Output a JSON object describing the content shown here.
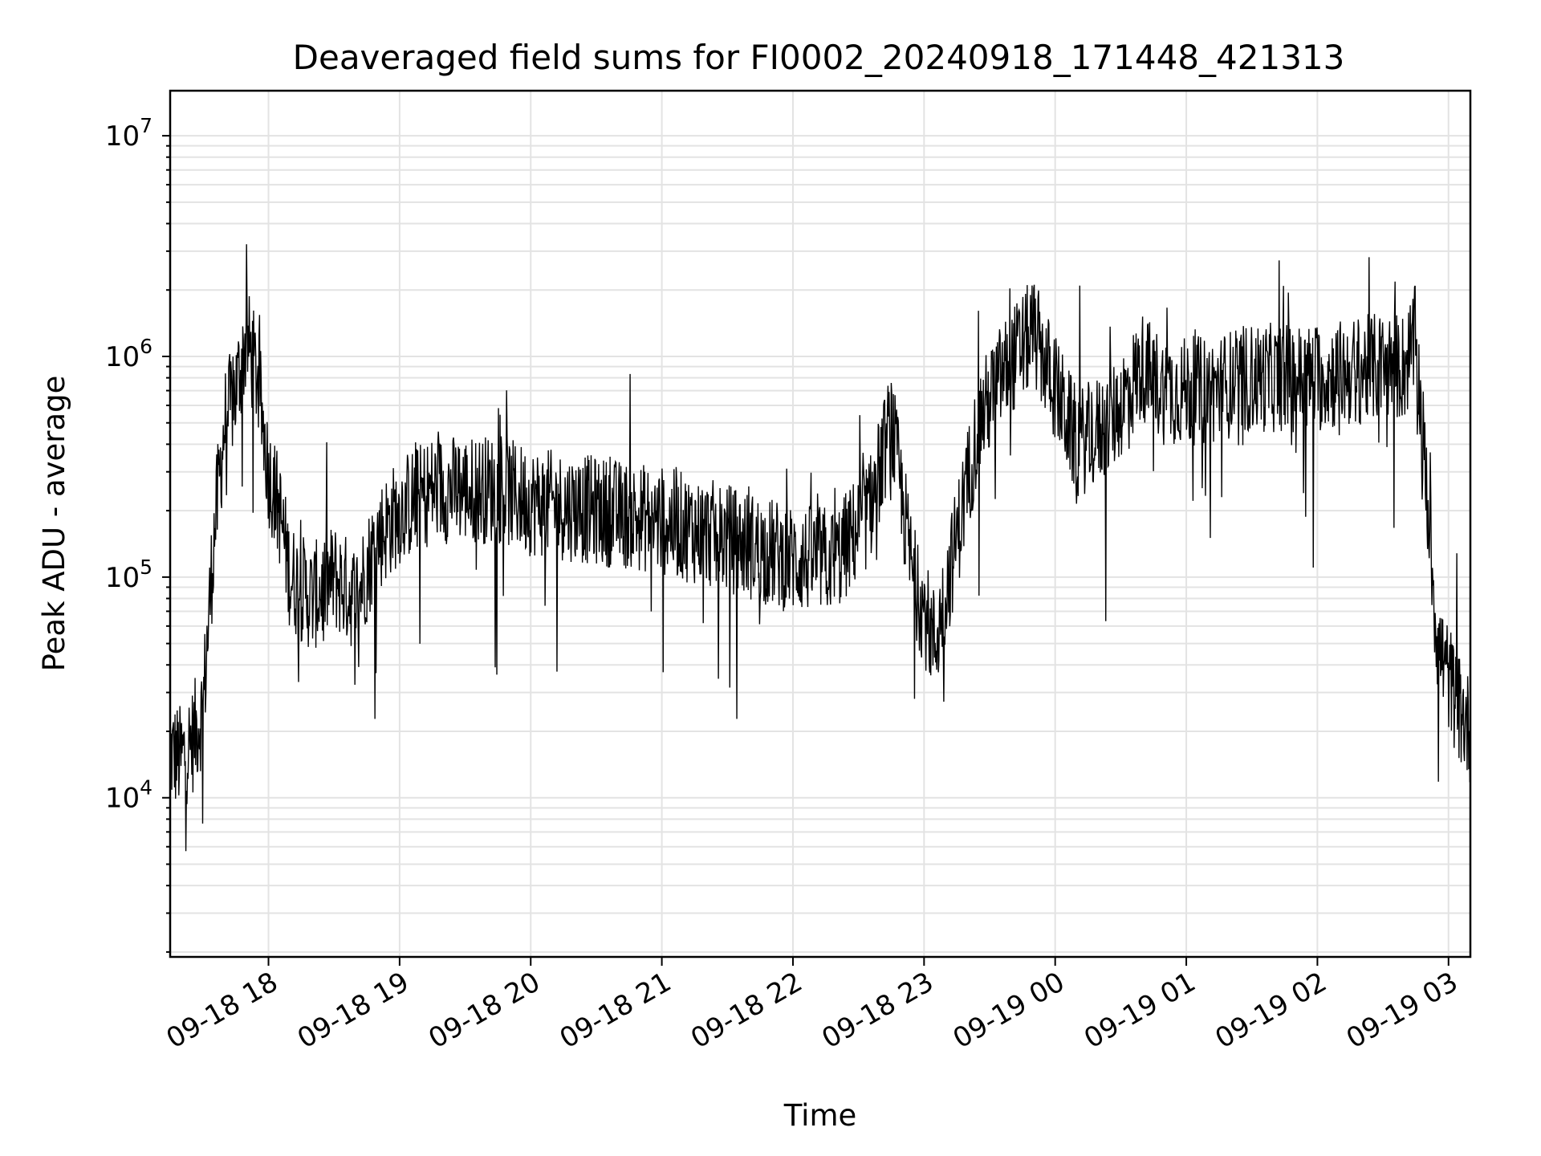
{
  "chart_data": {
    "type": "line",
    "title": "Deaveraged field sums for FI0002_20240918_171448_421313",
    "xlabel": "Time",
    "ylabel": "Peak ADU - average",
    "yscale": "log",
    "xlim": [
      "2024-09-18 17:15",
      "2024-09-19 03:10"
    ],
    "ylim": [
      1900,
      16000000
    ],
    "grid": true,
    "line_color": "#000000",
    "x_ticks": [
      "09-18 18",
      "09-18 19",
      "09-18 20",
      "09-18 21",
      "09-18 22",
      "09-18 23",
      "09-19 00",
      "09-19 01",
      "09-19 02",
      "09-19 03"
    ],
    "x_tick_times": [
      "2024-09-18 18:00",
      "2024-09-18 19:00",
      "2024-09-18 20:00",
      "2024-09-18 21:00",
      "2024-09-18 22:00",
      "2024-09-18 23:00",
      "2024-09-19 00:00",
      "2024-09-19 01:00",
      "2024-09-19 02:00",
      "2024-09-19 03:00"
    ],
    "y_ticks": [
      {
        "base": "10",
        "exp": "4",
        "value": 10000
      },
      {
        "base": "10",
        "exp": "5",
        "value": 100000
      },
      {
        "base": "10",
        "exp": "6",
        "value": 1000000
      },
      {
        "base": "10",
        "exp": "7",
        "value": 10000000
      }
    ],
    "series": [
      {
        "noise_decades": 0.25,
        "x": [
          "2024-09-18 17:15",
          "2024-09-18 17:20",
          "2024-09-18 17:25",
          "2024-09-18 17:30",
          "2024-09-18 17:35",
          "2024-09-18 17:40",
          "2024-09-18 17:45",
          "2024-09-18 17:50",
          "2024-09-18 17:55",
          "2024-09-18 18:00",
          "2024-09-18 18:05",
          "2024-09-18 18:10",
          "2024-09-18 18:20",
          "2024-09-18 18:30",
          "2024-09-18 18:40",
          "2024-09-18 18:50",
          "2024-09-18 19:00",
          "2024-09-18 19:15",
          "2024-09-18 19:30",
          "2024-09-18 19:45",
          "2024-09-18 20:00",
          "2024-09-18 20:30",
          "2024-09-18 21:00",
          "2024-09-18 21:30",
          "2024-09-18 22:00",
          "2024-09-18 22:20",
          "2024-09-18 22:35",
          "2024-09-18 22:45",
          "2024-09-18 22:55",
          "2024-09-18 23:05",
          "2024-09-18 23:15",
          "2024-09-18 23:25",
          "2024-09-18 23:35",
          "2024-09-18 23:50",
          "2024-09-19 00:10",
          "2024-09-19 00:25",
          "2024-09-19 00:40",
          "2024-09-19 00:50",
          "2024-09-19 01:10",
          "2024-09-19 01:30",
          "2024-09-19 02:00",
          "2024-09-19 02:30",
          "2024-09-19 02:40",
          "2024-09-19 02:45",
          "2024-09-19 02:50",
          "2024-09-19 02:55",
          "2024-09-19 03:05",
          "2024-09-19 03:10"
        ],
        "values": [
          16000,
          15000,
          18000,
          25000,
          150000,
          500000,
          700000,
          1200000,
          800000,
          300000,
          200000,
          100000,
          80000,
          100000,
          80000,
          150000,
          200000,
          250000,
          250000,
          250000,
          220000,
          200000,
          180000,
          150000,
          120000,
          120000,
          200000,
          500000,
          100000,
          50000,
          150000,
          500000,
          800000,
          1300000,
          400000,
          500000,
          900000,
          700000,
          700000,
          800000,
          800000,
          900000,
          900000,
          1200000,
          250000,
          50000,
          25000,
          20000
        ]
      }
    ]
  }
}
